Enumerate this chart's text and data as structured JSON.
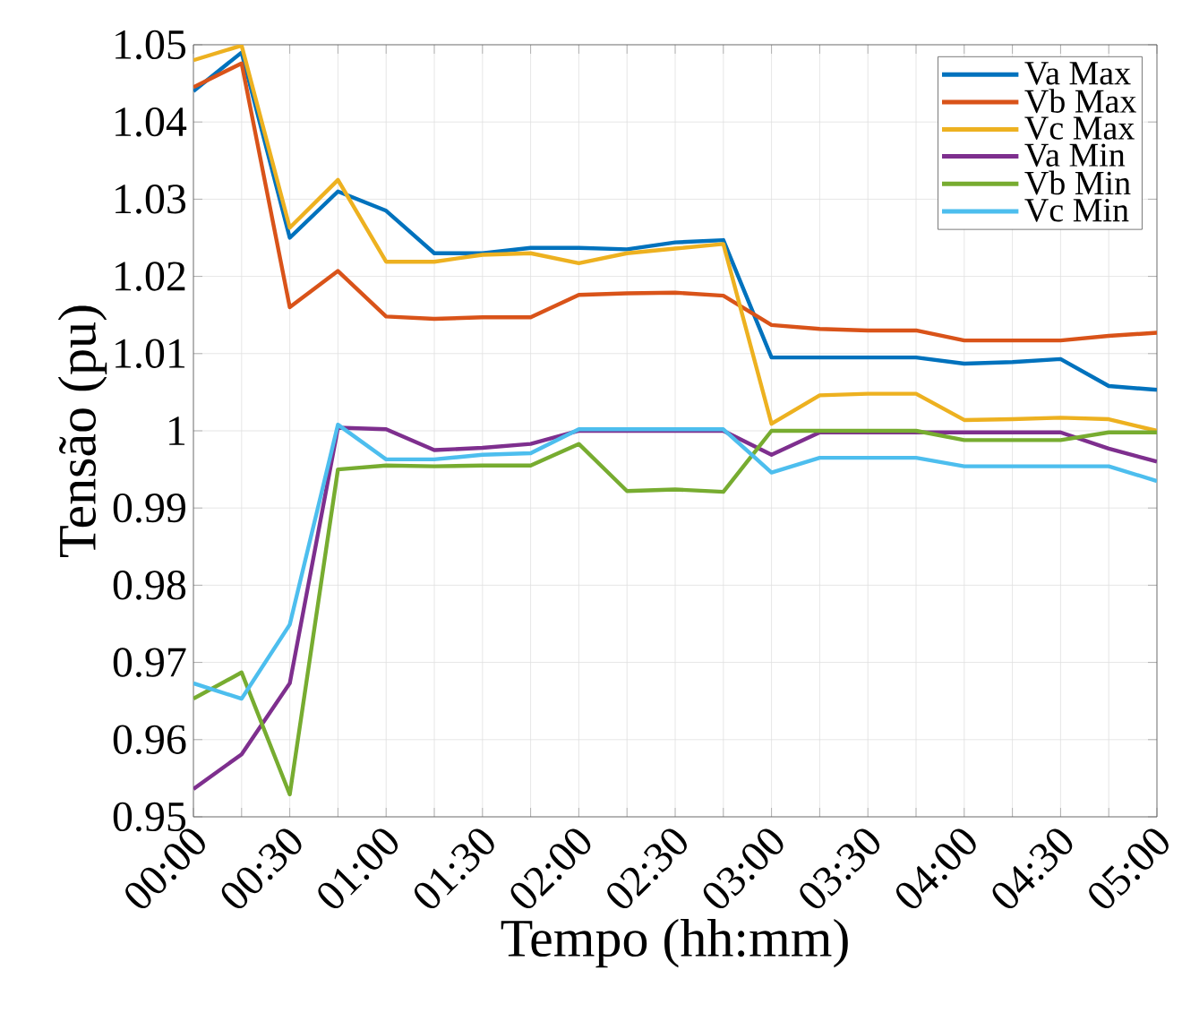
{
  "chart_data": {
    "type": "line",
    "xlabel": "Tempo (hh:mm)",
    "ylabel": "Tensão (pu)",
    "x": [
      0,
      0.25,
      0.5,
      0.75,
      1,
      1.25,
      1.5,
      1.75,
      2,
      2.25,
      2.5,
      2.75,
      3,
      3.25,
      3.5,
      3.75,
      4,
      4.25,
      4.5,
      4.75,
      5
    ],
    "xlim": [
      0,
      5
    ],
    "xticks": [
      {
        "value": 0,
        "label": "00:00"
      },
      {
        "value": 0.25,
        "label": null
      },
      {
        "value": 0.5,
        "label": "00:30"
      },
      {
        "value": 0.75,
        "label": null
      },
      {
        "value": 1,
        "label": "01:00"
      },
      {
        "value": 1.25,
        "label": null
      },
      {
        "value": 1.5,
        "label": "01:30"
      },
      {
        "value": 1.75,
        "label": null
      },
      {
        "value": 2,
        "label": "02:00"
      },
      {
        "value": 2.25,
        "label": null
      },
      {
        "value": 2.5,
        "label": "02:30"
      },
      {
        "value": 2.75,
        "label": null
      },
      {
        "value": 3,
        "label": "03:00"
      },
      {
        "value": 3.25,
        "label": null
      },
      {
        "value": 3.5,
        "label": "03:30"
      },
      {
        "value": 3.75,
        "label": null
      },
      {
        "value": 4,
        "label": "04:00"
      },
      {
        "value": 4.25,
        "label": null
      },
      {
        "value": 4.5,
        "label": "04:30"
      },
      {
        "value": 4.75,
        "label": null
      },
      {
        "value": 5,
        "label": "05:00"
      }
    ],
    "ylim": [
      0.95,
      1.05
    ],
    "yticks": [
      0.95,
      0.96,
      0.97,
      0.98,
      0.99,
      {
        "value": 1,
        "label": "1"
      },
      1.01,
      1.02,
      1.03,
      1.04,
      1.05
    ],
    "grid": true,
    "legend": "top right",
    "marker": "none",
    "line_style": "solid",
    "series": [
      {
        "name": "Va Max",
        "color": "#0072bd",
        "values": [
          1.044,
          1.049,
          1.025,
          1.031,
          1.0285,
          1.023,
          1.023,
          1.0237,
          1.0237,
          1.0235,
          1.0244,
          1.0247,
          1.0095,
          1.0095,
          1.0095,
          1.0095,
          1.0087,
          1.0089,
          1.0093,
          1.0058,
          1.0053
        ]
      },
      {
        "name": "Vb Max",
        "color": "#d95319",
        "values": [
          1.0445,
          1.0476,
          1.016,
          1.0207,
          1.0148,
          1.0145,
          1.0147,
          1.0147,
          1.0176,
          1.0178,
          1.0179,
          1.0175,
          1.0137,
          1.0132,
          1.013,
          1.013,
          1.0117,
          1.0117,
          1.0117,
          1.0123,
          1.0127
        ]
      },
      {
        "name": "Vc Max",
        "color": "#edb120",
        "values": [
          1.048,
          1.0499,
          1.0263,
          1.0325,
          1.0219,
          1.0219,
          1.0228,
          1.023,
          1.0217,
          1.023,
          1.0236,
          1.0242,
          1.0009,
          1.0046,
          1.0048,
          1.0048,
          1.0014,
          1.0015,
          1.0017,
          1.0015,
          1.0
        ]
      },
      {
        "name": "Va Min",
        "color": "#7e2f8e",
        "values": [
          0.9536,
          0.9581,
          0.9673,
          1.0004,
          1.0002,
          0.9975,
          0.9978,
          0.9983,
          1.0,
          1.0,
          1.0,
          1.0,
          0.9969,
          0.9998,
          0.9998,
          0.9998,
          0.9998,
          0.9998,
          0.9998,
          0.9977,
          0.996
        ]
      },
      {
        "name": "Vb Min",
        "color": "#77ac30",
        "values": [
          0.9653,
          0.9687,
          0.9529,
          0.995,
          0.9955,
          0.9954,
          0.9955,
          0.9955,
          0.9983,
          0.9922,
          0.9924,
          0.9921,
          1.0,
          1.0,
          1.0,
          1.0,
          0.9988,
          0.9988,
          0.9988,
          0.9998,
          0.9998
        ]
      },
      {
        "name": "Vc Min",
        "color": "#4dbeee",
        "values": [
          0.9673,
          0.9653,
          0.9749,
          1.0008,
          0.9963,
          0.9963,
          0.9969,
          0.9971,
          1.0002,
          1.0002,
          1.0002,
          1.0002,
          0.9946,
          0.9965,
          0.9965,
          0.9965,
          0.9954,
          0.9954,
          0.9954,
          0.9954,
          0.9935
        ]
      }
    ]
  }
}
